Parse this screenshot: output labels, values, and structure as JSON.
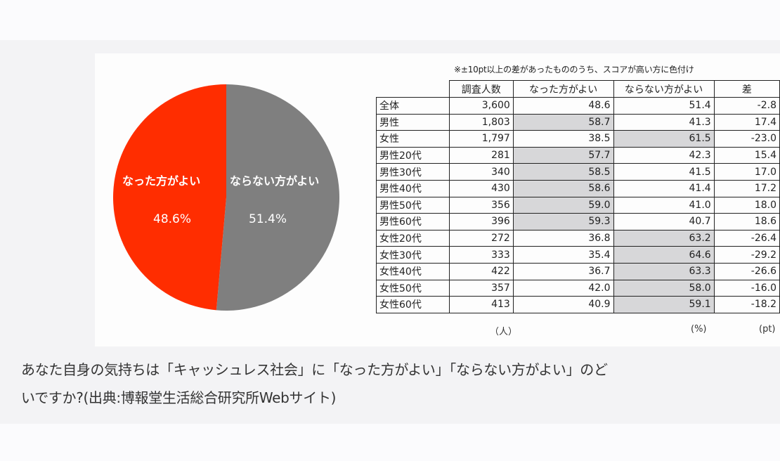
{
  "caption": {
    "line1": "あなた自身の気持ちは「キャッシュレス社会」に「なった方がよい」「ならない方がよい」のど",
    "line2": "いですか?(出典:博報堂生活総合研究所Webサイト)"
  },
  "figure": {
    "note": "※±10pt以上の差があったもののうち、スコアが高い方に色付け",
    "units": {
      "count": "（人）",
      "percent": "(%)",
      "diff": "(pt)"
    },
    "colors": {
      "better": "#ff2d00",
      "not_better": "#7f7f7f",
      "highlight": "#d7d7d9"
    }
  },
  "chart_data": [
    {
      "type": "pie",
      "title": "",
      "labels": [
        "なった方がよい",
        "ならない方がよい"
      ],
      "values": [
        48.6,
        51.4
      ],
      "value_labels": [
        "48.6%",
        "51.4%"
      ],
      "colors": [
        "#ff2d00",
        "#7f7f7f"
      ]
    },
    {
      "type": "table",
      "columns": [
        "",
        "調査人数",
        "なった方がよい",
        "ならない方がよい",
        "差"
      ],
      "rows": [
        {
          "label": "全体",
          "count": "3,600",
          "better": "48.6",
          "not_better": "51.4",
          "diff": "-2.8",
          "hl": ""
        },
        {
          "label": "男性",
          "count": "1,803",
          "better": "58.7",
          "not_better": "41.3",
          "diff": "17.4",
          "hl": "better"
        },
        {
          "label": "女性",
          "count": "1,797",
          "better": "38.5",
          "not_better": "61.5",
          "diff": "-23.0",
          "hl": "not_better"
        },
        {
          "label": "男性20代",
          "count": "281",
          "better": "57.7",
          "not_better": "42.3",
          "diff": "15.4",
          "hl": "better"
        },
        {
          "label": "男性30代",
          "count": "340",
          "better": "58.5",
          "not_better": "41.5",
          "diff": "17.0",
          "hl": "better"
        },
        {
          "label": "男性40代",
          "count": "430",
          "better": "58.6",
          "not_better": "41.4",
          "diff": "17.2",
          "hl": "better"
        },
        {
          "label": "男性50代",
          "count": "356",
          "better": "59.0",
          "not_better": "41.0",
          "diff": "18.0",
          "hl": "better"
        },
        {
          "label": "男性60代",
          "count": "396",
          "better": "59.3",
          "not_better": "40.7",
          "diff": "18.6",
          "hl": "better"
        },
        {
          "label": "女性20代",
          "count": "272",
          "better": "36.8",
          "not_better": "63.2",
          "diff": "-26.4",
          "hl": "not_better"
        },
        {
          "label": "女性30代",
          "count": "333",
          "better": "35.4",
          "not_better": "64.6",
          "diff": "-29.2",
          "hl": "not_better"
        },
        {
          "label": "女性40代",
          "count": "422",
          "better": "36.7",
          "not_better": "63.3",
          "diff": "-26.6",
          "hl": "not_better"
        },
        {
          "label": "女性50代",
          "count": "357",
          "better": "42.0",
          "not_better": "58.0",
          "diff": "-16.0",
          "hl": "not_better"
        },
        {
          "label": "女性60代",
          "count": "413",
          "better": "40.9",
          "not_better": "59.1",
          "diff": "-18.2",
          "hl": "not_better"
        }
      ]
    }
  ]
}
